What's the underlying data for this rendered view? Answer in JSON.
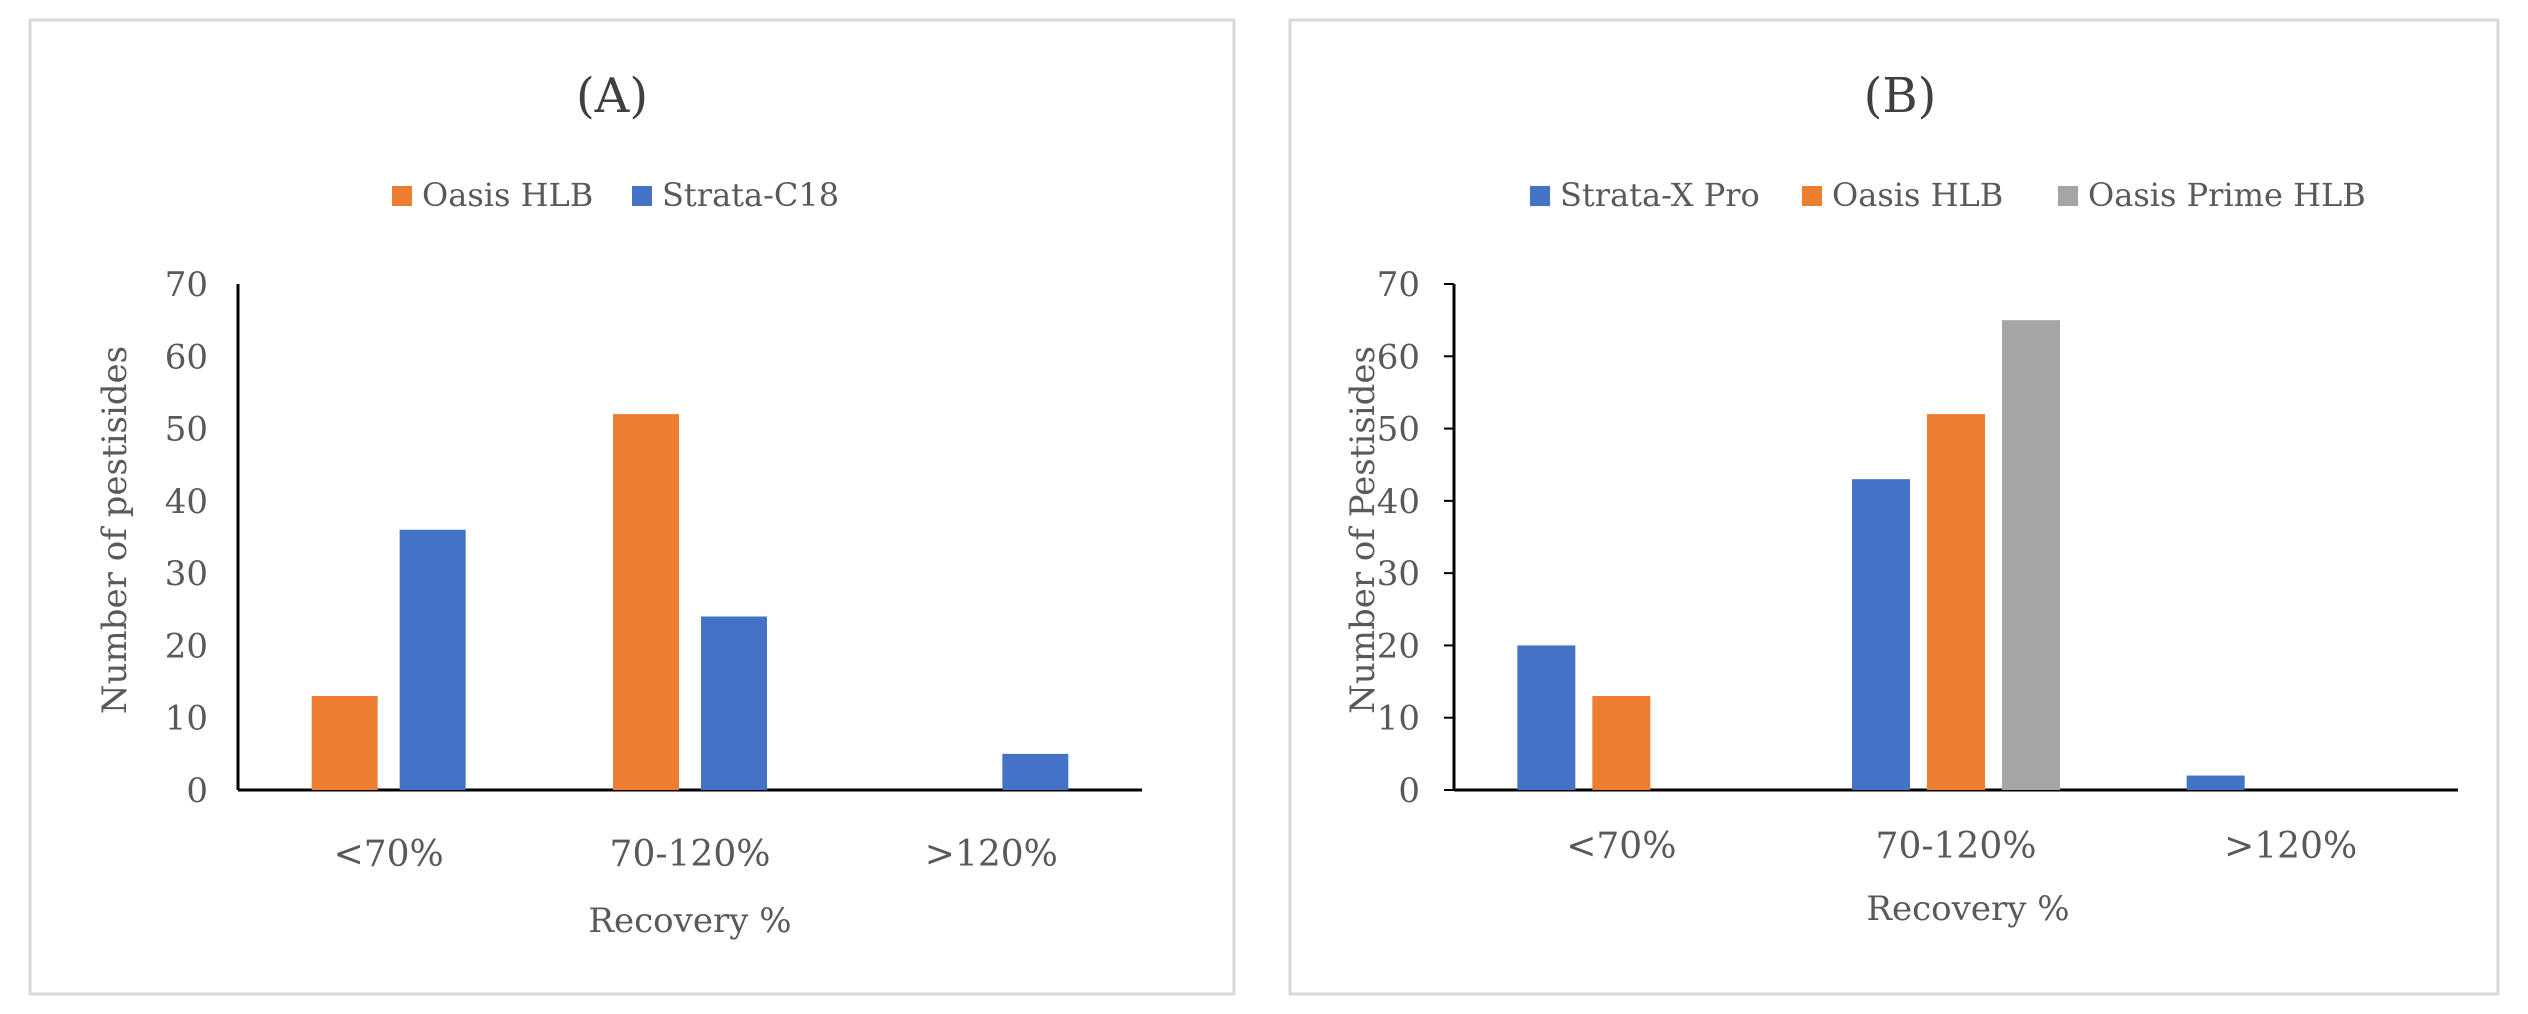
{
  "chart_data": [
    {
      "type": "bar",
      "title": "(A)",
      "xlabel": "Recovery %",
      "ylabel": "Number of pestisides",
      "categories": [
        "<70%",
        "70-120%",
        ">120%"
      ],
      "ylim": [
        0,
        70
      ],
      "yticks": [
        0,
        10,
        20,
        30,
        40,
        50,
        60,
        70
      ],
      "grid": false,
      "legend": "top",
      "series": [
        {
          "name": "Oasis HLB",
          "color": "#ED7D31",
          "values": [
            13,
            52,
            0
          ]
        },
        {
          "name": "Strata-C18",
          "color": "#4472C4",
          "values": [
            36,
            24,
            5
          ]
        }
      ]
    },
    {
      "type": "bar",
      "title": "(B)",
      "xlabel": "Recovery %",
      "ylabel": "Number of Pestisides",
      "categories": [
        "<70%",
        "70-120%",
        ">120%"
      ],
      "ylim": [
        0,
        70
      ],
      "yticks": [
        0,
        10,
        20,
        30,
        40,
        50,
        60,
        70
      ],
      "grid": false,
      "legend": "top",
      "series": [
        {
          "name": "Strata-X Pro",
          "color": "#4472C4",
          "values": [
            20,
            43,
            2
          ]
        },
        {
          "name": "Oasis HLB",
          "color": "#ED7D31",
          "values": [
            13,
            52,
            0
          ]
        },
        {
          "name": "Oasis Prime HLB",
          "color": "#A5A5A5",
          "values": [
            0,
            65,
            0
          ]
        }
      ]
    }
  ]
}
